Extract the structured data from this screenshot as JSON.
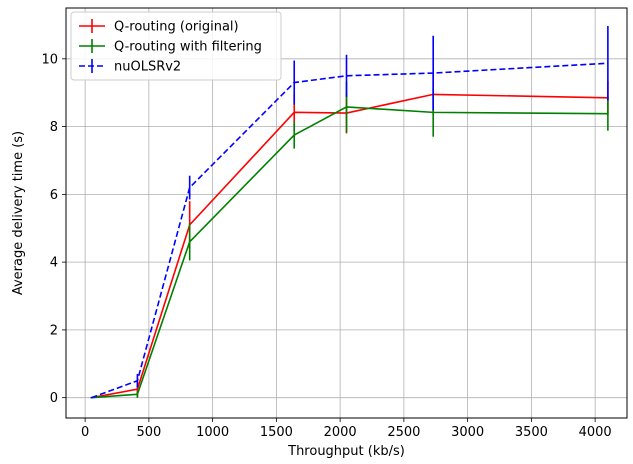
{
  "chart_data": {
    "type": "line",
    "xlabel": "Throughput (kb/s)",
    "ylabel": "Average delivery time (s)",
    "xlim": [
      -150,
      4250
    ],
    "ylim": [
      -0.6,
      11.5
    ],
    "xticks": [
      0,
      500,
      1000,
      1500,
      2000,
      2500,
      3000,
      3500,
      4000
    ],
    "yticks": [
      0,
      2,
      4,
      6,
      8,
      10
    ],
    "grid": true,
    "legend_position": "top-left",
    "series": [
      {
        "name": "Q-routing (original)",
        "color": "#ff0000",
        "dash": "solid",
        "x": [
          50,
          410,
          820,
          1640,
          2050,
          2730,
          4100
        ],
        "y": [
          0.0,
          0.25,
          5.1,
          8.42,
          8.4,
          8.95,
          8.85
        ],
        "yerr": [
          0.02,
          0.25,
          0.7,
          0.55,
          0.6,
          0.6,
          0.5
        ]
      },
      {
        "name": "Q-routing with filtering",
        "color": "#008000",
        "dash": "solid",
        "x": [
          50,
          410,
          820,
          1640,
          2050,
          2730,
          4100
        ],
        "y": [
          0.0,
          0.1,
          4.6,
          7.75,
          8.58,
          8.42,
          8.38
        ],
        "yerr": [
          0.02,
          0.1,
          0.55,
          0.4,
          0.75,
          0.72,
          0.5
        ]
      },
      {
        "name": "nuOLSRv2",
        "color": "#0000ff",
        "dash": "dashed",
        "x": [
          50,
          410,
          820,
          1640,
          2050,
          2730,
          4100
        ],
        "y": [
          0.0,
          0.5,
          6.2,
          9.3,
          9.5,
          9.58,
          9.87
        ],
        "yerr": [
          0.02,
          0.2,
          0.35,
          0.65,
          0.62,
          1.1,
          1.1
        ]
      }
    ]
  }
}
